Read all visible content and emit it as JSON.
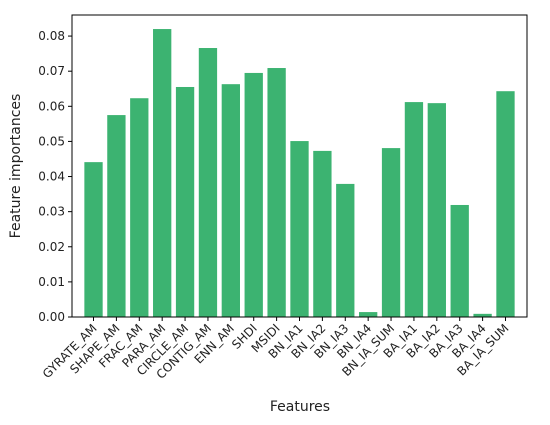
{
  "chart_data": {
    "type": "bar",
    "xlabel": "Features",
    "ylabel": "Feature importances",
    "categories": [
      "GYRATE_AM",
      "SHAPE_AM",
      "FRAC_AM",
      "PARA_AM",
      "CIRCLE_AM",
      "CONTIG_AM",
      "ENN_AM",
      "SHDI",
      "MSIDI",
      "BN_IA1",
      "BN_IA2",
      "BN_IA3",
      "BN_IA4",
      "BN_IA_SUM",
      "BA_IA1",
      "BA_IA2",
      "BA_IA3",
      "BA_IA4",
      "BA_IA_SUM"
    ],
    "values": [
      0.0441,
      0.0575,
      0.0623,
      0.082,
      0.0655,
      0.0766,
      0.0663,
      0.0695,
      0.0709,
      0.0501,
      0.0473,
      0.0379,
      0.0014,
      0.0481,
      0.0612,
      0.0609,
      0.0319,
      0.0009,
      0.0643
    ],
    "color": "#3cb371",
    "ylim": [
      0,
      0.086
    ],
    "yticks": [
      {
        "value": 0,
        "label": "0.00"
      },
      {
        "value": 0.01,
        "label": "0.01"
      },
      {
        "value": 0.02,
        "label": "0.02"
      },
      {
        "value": 0.03,
        "label": "0.03"
      },
      {
        "value": 0.04,
        "label": "0.04"
      },
      {
        "value": 0.05,
        "label": "0.05"
      },
      {
        "value": 0.06,
        "label": "0.06"
      },
      {
        "value": 0.07,
        "label": "0.07"
      },
      {
        "value": 0.08,
        "label": "0.08"
      }
    ]
  }
}
